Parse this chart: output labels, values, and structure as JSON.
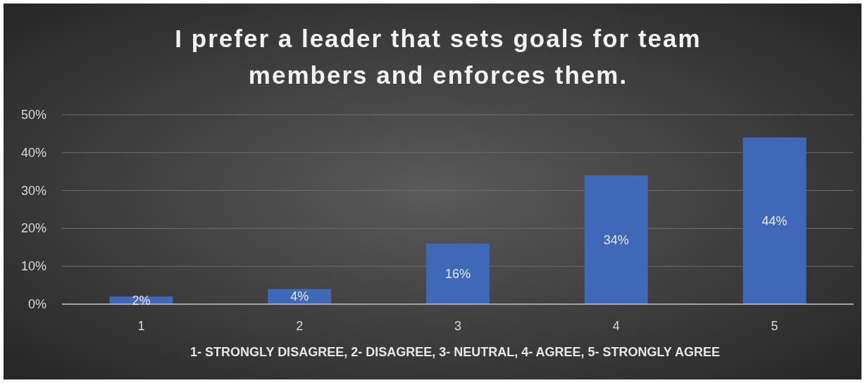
{
  "chart_data": {
    "type": "bar",
    "title": "I prefer a leader that sets goals for team members and enforces them.",
    "xlabel": "1- STRONGLY DISAGREE, 2- DISAGREE, 3- NEUTRAL, 4- AGREE, 5- STRONGLY AGREE",
    "categories": [
      "1",
      "2",
      "3",
      "4",
      "5"
    ],
    "values": [
      2,
      4,
      16,
      34,
      44
    ],
    "value_labels": [
      "2%",
      "4%",
      "16%",
      "34%",
      "44%"
    ],
    "color": "#4068b8",
    "ylim": [
      0,
      50
    ],
    "yticks": [
      {
        "value": 0,
        "label": "0%"
      },
      {
        "value": 10,
        "label": "10%"
      },
      {
        "value": 20,
        "label": "20%"
      },
      {
        "value": 30,
        "label": "30%"
      },
      {
        "value": 40,
        "label": "40%"
      },
      {
        "value": 50,
        "label": "50%"
      }
    ],
    "grid": "y"
  }
}
